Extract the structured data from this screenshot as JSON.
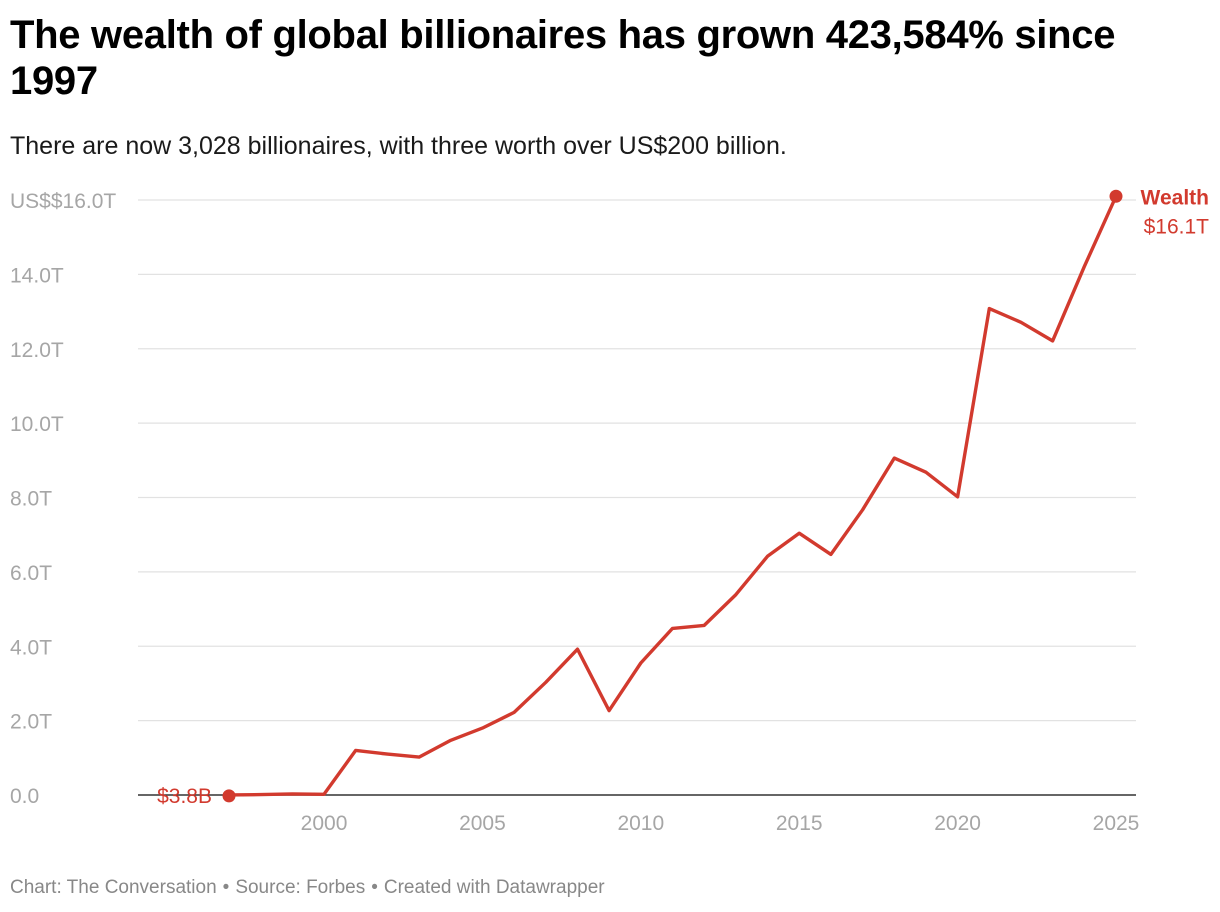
{
  "header": {
    "title": "The wealth of global billionaires has grown 423,584% since 1997",
    "subtitle": "There are now 3,028 billionaires, with three worth over US$200 billion."
  },
  "footer": {
    "chart_credit": "Chart: The Conversation",
    "source": "Source: Forbes",
    "created_with": "Created with Datawrapper",
    "separator": "•"
  },
  "colors": {
    "line": "#d23a2e",
    "grid": "#e2e2e2",
    "axis": "#333333",
    "tick_text": "#a6a6a6"
  },
  "chart_data": {
    "type": "line",
    "title": "",
    "xlabel": "",
    "ylabel": "",
    "xlim": [
      1997,
      2025
    ],
    "ylim": [
      0,
      16
    ],
    "y_ticks": [
      0,
      2,
      4,
      6,
      8,
      10,
      12,
      14,
      16
    ],
    "y_tick_labels": [
      "0.0",
      "2.0T",
      "4.0T",
      "6.0T",
      "8.0T",
      "10.0T",
      "12.0T",
      "14.0T",
      "US$$16.0T"
    ],
    "x_ticks": [
      2000,
      2005,
      2010,
      2015,
      2020,
      2025
    ],
    "x_tick_labels": [
      "2000",
      "2005",
      "2010",
      "2015",
      "2020",
      "2025"
    ],
    "grid": true,
    "series": [
      {
        "name": "Wealth",
        "x": [
          1997,
          1998,
          1999,
          2000,
          2001,
          2002,
          2003,
          2004,
          2005,
          2006,
          2007,
          2008,
          2009,
          2010,
          2011,
          2012,
          2013,
          2014,
          2015,
          2016,
          2017,
          2018,
          2019,
          2020,
          2021,
          2022,
          2023,
          2024,
          2025
        ],
        "values": [
          0.0038,
          0.01,
          0.03,
          0.02,
          1.2,
          1.1,
          1.02,
          1.47,
          1.8,
          2.22,
          3.03,
          3.92,
          2.27,
          3.55,
          4.48,
          4.56,
          5.39,
          6.42,
          7.04,
          6.47,
          7.67,
          9.06,
          8.68,
          8.02,
          13.08,
          12.71,
          12.21,
          14.21,
          16.1
        ]
      }
    ],
    "annotations": {
      "start_label": "$3.8B",
      "end_series_label": "Wealth",
      "end_value_label": "$16.1T"
    }
  }
}
